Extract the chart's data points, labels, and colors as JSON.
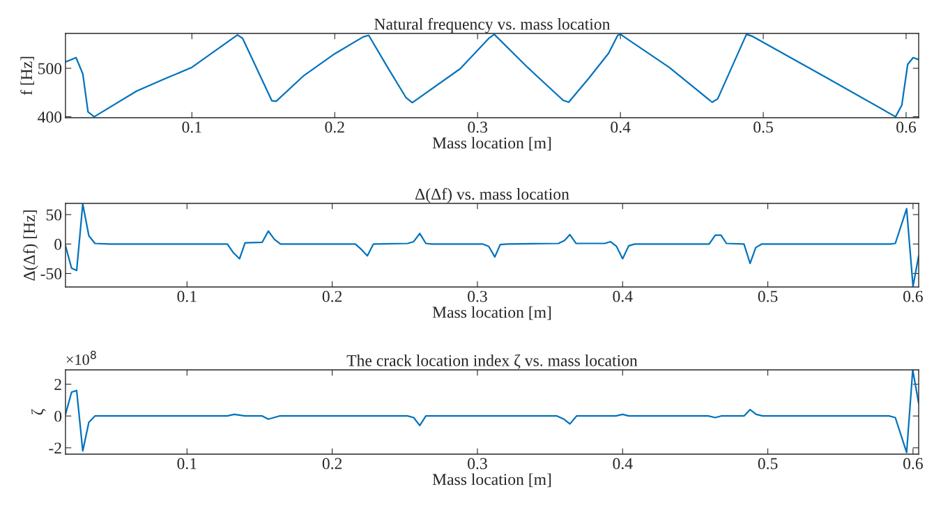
{
  "chart_data": [
    {
      "type": "line",
      "title": "Natural frequency vs. mass location",
      "xlabel": "Mass location [m]",
      "ylabel": "f [Hz]",
      "x": [
        0.0115,
        0.0189,
        0.0236,
        0.0273,
        0.0316,
        0.0613,
        0.08,
        0.1,
        0.1319,
        0.1355,
        0.156,
        0.159,
        0.178,
        0.2,
        0.22,
        0.2238,
        0.237,
        0.25,
        0.2543,
        0.2878,
        0.3079,
        0.3117,
        0.335,
        0.3599,
        0.3638,
        0.378,
        0.3917,
        0.3981,
        0.4002,
        0.404,
        0.4341,
        0.4642,
        0.4681,
        0.4882,
        0.4925,
        0.5423,
        0.5926,
        0.597,
        0.6011,
        0.6049,
        0.6088
      ],
      "series": [
        {
          "color": "#0072bd",
          "values": [
            513,
            522,
            489,
            410,
            400,
            453,
            477,
            502,
            569,
            562,
            433,
            432,
            484,
            530,
            565,
            568,
            502,
            439,
            429,
            499,
            562,
            570,
            502,
            434,
            430,
            480,
            531,
            568,
            570,
            562,
            502,
            430,
            437,
            570,
            566,
            484,
            400,
            424,
            508,
            522,
            518
          ]
        }
      ],
      "xlim": [
        0.0115,
        0.6088
      ],
      "ylim": [
        398,
        572
      ],
      "xticks": [
        0.1,
        0.2,
        0.3,
        0.4,
        0.5,
        0.6
      ],
      "yticks": [
        400,
        500
      ]
    },
    {
      "type": "line",
      "title": "Δ(Δf) vs. mass location",
      "xlabel": "Mass location [m]",
      "ylabel": "Δ(Δf) [Hz]",
      "x": [
        0.0163,
        0.0205,
        0.024,
        0.0282,
        0.0324,
        0.0366,
        0.0465,
        0.1278,
        0.132,
        0.1362,
        0.14,
        0.1518,
        0.156,
        0.1602,
        0.1644,
        0.2159,
        0.22,
        0.2242,
        0.2284,
        0.2519,
        0.2561,
        0.2603,
        0.2645,
        0.2686,
        0.3036,
        0.3078,
        0.312,
        0.3157,
        0.3203,
        0.3558,
        0.36,
        0.3637,
        0.3679,
        0.3877,
        0.3916,
        0.3958,
        0.4,
        0.4042,
        0.4084,
        0.4596,
        0.4638,
        0.4678,
        0.4715,
        0.4836,
        0.4878,
        0.4917,
        0.4959,
        0.5841,
        0.5878,
        0.5956,
        0.6,
        0.6039
      ],
      "series": [
        {
          "color": "#0072bd",
          "values": [
            -3,
            -41,
            -45,
            68,
            14,
            1,
            0,
            0,
            -15,
            -25,
            2,
            3,
            22,
            8,
            0,
            0,
            -9,
            -20,
            0,
            1,
            4,
            18,
            1,
            0,
            0,
            -4,
            -22,
            -1,
            0,
            1,
            6,
            16,
            1,
            1,
            4,
            -4,
            -25,
            -3,
            0,
            0,
            15,
            15,
            1,
            0,
            -33,
            -6,
            0,
            0,
            1,
            60,
            -72,
            -20
          ]
        }
      ],
      "xlim": [
        0.0163,
        0.6039
      ],
      "ylim": [
        -73,
        69
      ],
      "xticks": [
        0.1,
        0.2,
        0.3,
        0.4,
        0.5,
        0.6
      ],
      "yticks": [
        -50,
        0,
        50
      ]
    },
    {
      "type": "line",
      "title": "The crack location index ζ vs. mass location",
      "xlabel": "Mass location [m]",
      "ylabel": "ζ",
      "annotations": [
        "×10$^{8}$"
      ],
      "x": [
        0.0163,
        0.0205,
        0.024,
        0.0282,
        0.0324,
        0.0366,
        0.0465,
        0.1278,
        0.1325,
        0.14,
        0.1518,
        0.156,
        0.1637,
        0.22,
        0.2519,
        0.2561,
        0.2603,
        0.2645,
        0.2686,
        0.3114,
        0.3548,
        0.3596,
        0.3637,
        0.3683,
        0.3954,
        0.4,
        0.4042,
        0.459,
        0.4638,
        0.4678,
        0.4836,
        0.4878,
        0.492,
        0.4965,
        0.5835,
        0.5878,
        0.5956,
        0.5998,
        0.6039
      ],
      "series": [
        {
          "color": "#0072bd",
          "values": [
            0.1,
            1.5,
            1.6,
            -2.2,
            -0.4,
            0,
            0,
            0,
            0.1,
            0,
            0,
            -0.2,
            0,
            0,
            0,
            -0.1,
            -0.6,
            0,
            0,
            0,
            0,
            -0.2,
            -0.5,
            0,
            0,
            0.1,
            0,
            0,
            -0.1,
            0,
            0,
            0.4,
            0.1,
            0,
            0,
            -0.1,
            -2.3,
            2.9,
            0.8
          ]
        }
      ],
      "xlim": [
        0.0163,
        0.6039
      ],
      "ylim": [
        -2.4,
        2.9
      ],
      "xticks": [
        0.1,
        0.2,
        0.3,
        0.4,
        0.5,
        0.6
      ],
      "yticks": [
        -2,
        0,
        2
      ]
    }
  ]
}
